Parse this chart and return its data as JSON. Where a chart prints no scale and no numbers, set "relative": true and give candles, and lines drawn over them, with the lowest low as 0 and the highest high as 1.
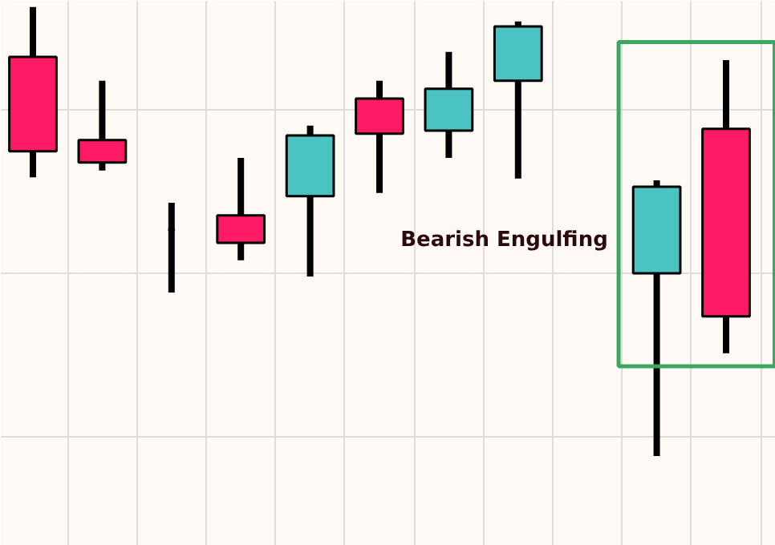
{
  "chart_data": {
    "type": "candlestick",
    "relative": true,
    "categories": [
      null,
      null,
      null,
      null,
      null,
      null,
      null,
      null,
      null,
      null,
      null
    ],
    "ohlc": [
      [
        0.889,
        1,
        0.621,
        0.679
      ],
      [
        0.704,
        0.836,
        0.636,
        0.654
      ],
      [
        0.504,
        0.564,
        0.364,
        0.504
      ],
      [
        0.536,
        0.664,
        0.436,
        0.475
      ],
      [
        0.579,
        0.736,
        0.4,
        0.714
      ],
      [
        0.796,
        0.836,
        0.586,
        0.718
      ],
      [
        0.725,
        0.9,
        0.664,
        0.818
      ],
      [
        0.836,
        0.968,
        0.618,
        0.957
      ],
      null,
      [
        0.407,
        0.614,
        0,
        0.6
      ],
      [
        0.729,
        0.882,
        0.229,
        0.311
      ]
    ],
    "colors": [
      "#ff1a66",
      "#ff1a66",
      "#000000",
      "#ff1a66",
      "#4cc3c3",
      "#ff1a66",
      "#4cc3c3",
      "#4cc3c3",
      null,
      "#4cc3c3",
      "#ff1a66"
    ],
    "annotations": [
      "Bearish Engulfing"
    ],
    "grid": true
  }
}
